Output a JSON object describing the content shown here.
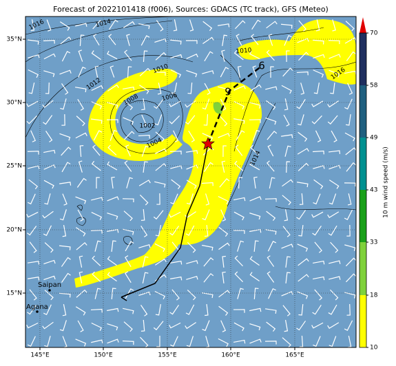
{
  "title": "Forecast of 2022101418 (f006), Sources: GDACS (TC track), GFS (Meteo)",
  "map": {
    "lon_labels": [
      "145°E",
      "150°E",
      "155°E",
      "160°E",
      "165°E"
    ],
    "lat_labels": [
      "35°N",
      "30°N",
      "25°N",
      "20°N",
      "15°N"
    ],
    "isobar_labels": [
      "1016",
      "1014",
      "1012",
      "1010",
      "1008",
      "1006",
      "1002",
      "1004",
      "1014",
      "1010",
      "1016"
    ],
    "track_labels": [
      "9",
      "6"
    ],
    "places": [
      "Saipan",
      "Agana"
    ]
  },
  "colorbar": {
    "label": "10 m wind speed (m/s)",
    "ticks": [
      "10",
      "18",
      "33",
      "43",
      "49",
      "58",
      "70"
    ]
  }
}
